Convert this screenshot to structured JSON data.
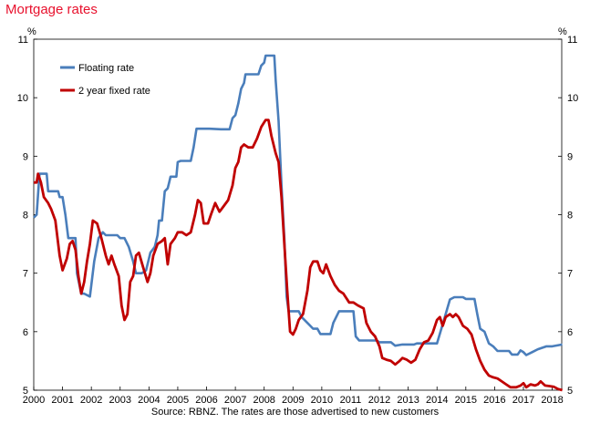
{
  "chart_data": {
    "type": "line",
    "title": "Mortgage rates",
    "source": "Source: RBNZ. The rates are those advertised to new customers",
    "y_unit_left": "%",
    "y_unit_right": "%",
    "ylim": [
      5,
      11
    ],
    "yticks": [
      5,
      6,
      7,
      8,
      9,
      10,
      11
    ],
    "xlim": [
      2000.0,
      2018.33
    ],
    "xticks": [
      "2000",
      "2001",
      "2002",
      "2003",
      "2004",
      "2005",
      "2006",
      "2007",
      "2008",
      "2009",
      "2010",
      "2011",
      "2012",
      "2013",
      "2014",
      "2015",
      "2016",
      "2017",
      "2018"
    ],
    "legend_position": "top-left",
    "grid": false,
    "series": [
      {
        "name": "Floating rate",
        "color": "#4a7ebb",
        "points": [
          [
            2000.0,
            7.95
          ],
          [
            2000.1,
            8.0
          ],
          [
            2000.2,
            8.7
          ],
          [
            2000.45,
            8.7
          ],
          [
            2000.5,
            8.4
          ],
          [
            2000.85,
            8.4
          ],
          [
            2000.9,
            8.3
          ],
          [
            2001.0,
            8.3
          ],
          [
            2001.1,
            8.0
          ],
          [
            2001.2,
            7.6
          ],
          [
            2001.45,
            7.6
          ],
          [
            2001.5,
            7.0
          ],
          [
            2001.65,
            6.65
          ],
          [
            2001.75,
            6.65
          ],
          [
            2001.95,
            6.6
          ],
          [
            2002.1,
            7.2
          ],
          [
            2002.25,
            7.6
          ],
          [
            2002.4,
            7.7
          ],
          [
            2002.5,
            7.65
          ],
          [
            2002.9,
            7.65
          ],
          [
            2003.0,
            7.6
          ],
          [
            2003.15,
            7.6
          ],
          [
            2003.3,
            7.45
          ],
          [
            2003.45,
            7.2
          ],
          [
            2003.55,
            7.0
          ],
          [
            2003.75,
            7.0
          ],
          [
            2003.9,
            7.05
          ],
          [
            2004.05,
            7.35
          ],
          [
            2004.2,
            7.45
          ],
          [
            2004.3,
            7.65
          ],
          [
            2004.35,
            7.9
          ],
          [
            2004.45,
            7.9
          ],
          [
            2004.55,
            8.4
          ],
          [
            2004.65,
            8.45
          ],
          [
            2004.7,
            8.55
          ],
          [
            2004.75,
            8.65
          ],
          [
            2004.95,
            8.65
          ],
          [
            2005.0,
            8.9
          ],
          [
            2005.1,
            8.92
          ],
          [
            2005.45,
            8.92
          ],
          [
            2005.55,
            9.15
          ],
          [
            2005.65,
            9.47
          ],
          [
            2006.0,
            9.47
          ],
          [
            2006.1,
            9.47
          ],
          [
            2006.5,
            9.46
          ],
          [
            2006.8,
            9.46
          ],
          [
            2006.9,
            9.65
          ],
          [
            2007.0,
            9.7
          ],
          [
            2007.1,
            9.9
          ],
          [
            2007.2,
            10.15
          ],
          [
            2007.3,
            10.25
          ],
          [
            2007.35,
            10.4
          ],
          [
            2007.8,
            10.4
          ],
          [
            2007.9,
            10.55
          ],
          [
            2008.0,
            10.6
          ],
          [
            2008.05,
            10.72
          ],
          [
            2008.35,
            10.72
          ],
          [
            2008.4,
            10.3
          ],
          [
            2008.5,
            9.6
          ],
          [
            2008.6,
            8.5
          ],
          [
            2008.7,
            7.6
          ],
          [
            2008.78,
            6.6
          ],
          [
            2008.85,
            6.35
          ],
          [
            2009.2,
            6.35
          ],
          [
            2009.3,
            6.25
          ],
          [
            2009.5,
            6.15
          ],
          [
            2009.7,
            6.05
          ],
          [
            2009.85,
            6.05
          ],
          [
            2009.95,
            5.96
          ],
          [
            2010.3,
            5.96
          ],
          [
            2010.4,
            6.15
          ],
          [
            2010.6,
            6.35
          ],
          [
            2010.95,
            6.35
          ],
          [
            2011.0,
            6.35
          ],
          [
            2011.1,
            6.35
          ],
          [
            2011.18,
            5.92
          ],
          [
            2011.3,
            5.85
          ],
          [
            2011.9,
            5.85
          ],
          [
            2012.0,
            5.82
          ],
          [
            2012.4,
            5.82
          ],
          [
            2012.55,
            5.76
          ],
          [
            2012.8,
            5.78
          ],
          [
            2013.2,
            5.78
          ],
          [
            2013.3,
            5.8
          ],
          [
            2013.8,
            5.8
          ],
          [
            2014.0,
            5.8
          ],
          [
            2014.15,
            6.05
          ],
          [
            2014.3,
            6.3
          ],
          [
            2014.45,
            6.55
          ],
          [
            2014.6,
            6.59
          ],
          [
            2014.9,
            6.59
          ],
          [
            2015.0,
            6.56
          ],
          [
            2015.3,
            6.56
          ],
          [
            2015.4,
            6.3
          ],
          [
            2015.5,
            6.05
          ],
          [
            2015.65,
            6.0
          ],
          [
            2015.8,
            5.8
          ],
          [
            2015.95,
            5.75
          ],
          [
            2016.1,
            5.67
          ],
          [
            2016.5,
            5.67
          ],
          [
            2016.6,
            5.61
          ],
          [
            2016.8,
            5.61
          ],
          [
            2016.9,
            5.68
          ],
          [
            2017.0,
            5.65
          ],
          [
            2017.1,
            5.6
          ],
          [
            2017.3,
            5.65
          ],
          [
            2017.5,
            5.7
          ],
          [
            2017.8,
            5.75
          ],
          [
            2018.0,
            5.75
          ],
          [
            2018.35,
            5.78
          ]
        ]
      },
      {
        "name": "2 year fixed rate",
        "color": "#c00000",
        "points": [
          [
            2000.0,
            8.55
          ],
          [
            2000.1,
            8.55
          ],
          [
            2000.15,
            8.7
          ],
          [
            2000.25,
            8.55
          ],
          [
            2000.35,
            8.3
          ],
          [
            2000.5,
            8.2
          ],
          [
            2000.6,
            8.1
          ],
          [
            2000.75,
            7.9
          ],
          [
            2000.9,
            7.3
          ],
          [
            2001.0,
            7.05
          ],
          [
            2001.15,
            7.25
          ],
          [
            2001.25,
            7.5
          ],
          [
            2001.35,
            7.55
          ],
          [
            2001.45,
            7.4
          ],
          [
            2001.55,
            6.95
          ],
          [
            2001.65,
            6.65
          ],
          [
            2001.75,
            6.85
          ],
          [
            2001.85,
            7.2
          ],
          [
            2001.95,
            7.5
          ],
          [
            2002.05,
            7.9
          ],
          [
            2002.2,
            7.85
          ],
          [
            2002.35,
            7.6
          ],
          [
            2002.5,
            7.3
          ],
          [
            2002.6,
            7.15
          ],
          [
            2002.7,
            7.3
          ],
          [
            2002.8,
            7.15
          ],
          [
            2002.95,
            6.95
          ],
          [
            2003.05,
            6.45
          ],
          [
            2003.15,
            6.2
          ],
          [
            2003.25,
            6.3
          ],
          [
            2003.35,
            6.85
          ],
          [
            2003.45,
            6.95
          ],
          [
            2003.55,
            7.3
          ],
          [
            2003.65,
            7.35
          ],
          [
            2003.8,
            7.1
          ],
          [
            2003.95,
            6.85
          ],
          [
            2004.05,
            7.0
          ],
          [
            2004.15,
            7.3
          ],
          [
            2004.3,
            7.5
          ],
          [
            2004.45,
            7.55
          ],
          [
            2004.55,
            7.6
          ],
          [
            2004.65,
            7.15
          ],
          [
            2004.75,
            7.5
          ],
          [
            2004.9,
            7.6
          ],
          [
            2005.0,
            7.7
          ],
          [
            2005.15,
            7.7
          ],
          [
            2005.3,
            7.65
          ],
          [
            2005.45,
            7.7
          ],
          [
            2005.6,
            8.0
          ],
          [
            2005.7,
            8.25
          ],
          [
            2005.8,
            8.2
          ],
          [
            2005.9,
            7.85
          ],
          [
            2006.05,
            7.85
          ],
          [
            2006.15,
            8.0
          ],
          [
            2006.3,
            8.2
          ],
          [
            2006.45,
            8.05
          ],
          [
            2006.6,
            8.15
          ],
          [
            2006.75,
            8.25
          ],
          [
            2006.9,
            8.5
          ],
          [
            2007.0,
            8.8
          ],
          [
            2007.1,
            8.9
          ],
          [
            2007.2,
            9.15
          ],
          [
            2007.3,
            9.2
          ],
          [
            2007.45,
            9.15
          ],
          [
            2007.6,
            9.15
          ],
          [
            2007.75,
            9.3
          ],
          [
            2007.9,
            9.5
          ],
          [
            2008.05,
            9.62
          ],
          [
            2008.15,
            9.62
          ],
          [
            2008.25,
            9.35
          ],
          [
            2008.4,
            9.05
          ],
          [
            2008.5,
            8.9
          ],
          [
            2008.6,
            8.3
          ],
          [
            2008.7,
            7.5
          ],
          [
            2008.8,
            6.7
          ],
          [
            2008.9,
            6.0
          ],
          [
            2009.0,
            5.95
          ],
          [
            2009.1,
            6.05
          ],
          [
            2009.2,
            6.2
          ],
          [
            2009.35,
            6.3
          ],
          [
            2009.5,
            6.7
          ],
          [
            2009.6,
            7.1
          ],
          [
            2009.7,
            7.2
          ],
          [
            2009.85,
            7.2
          ],
          [
            2009.95,
            7.05
          ],
          [
            2010.05,
            7.0
          ],
          [
            2010.15,
            7.15
          ],
          [
            2010.3,
            6.95
          ],
          [
            2010.45,
            6.8
          ],
          [
            2010.6,
            6.7
          ],
          [
            2010.75,
            6.65
          ],
          [
            2010.95,
            6.5
          ],
          [
            2011.1,
            6.5
          ],
          [
            2011.25,
            6.45
          ],
          [
            2011.45,
            6.4
          ],
          [
            2011.55,
            6.15
          ],
          [
            2011.7,
            6.0
          ],
          [
            2011.85,
            5.92
          ],
          [
            2012.0,
            5.75
          ],
          [
            2012.1,
            5.55
          ],
          [
            2012.25,
            5.52
          ],
          [
            2012.4,
            5.5
          ],
          [
            2012.55,
            5.44
          ],
          [
            2012.7,
            5.5
          ],
          [
            2012.8,
            5.55
          ],
          [
            2012.95,
            5.52
          ],
          [
            2013.1,
            5.47
          ],
          [
            2013.25,
            5.52
          ],
          [
            2013.4,
            5.7
          ],
          [
            2013.55,
            5.82
          ],
          [
            2013.7,
            5.85
          ],
          [
            2013.85,
            5.98
          ],
          [
            2014.0,
            6.2
          ],
          [
            2014.1,
            6.25
          ],
          [
            2014.2,
            6.1
          ],
          [
            2014.3,
            6.25
          ],
          [
            2014.45,
            6.3
          ],
          [
            2014.55,
            6.25
          ],
          [
            2014.65,
            6.3
          ],
          [
            2014.75,
            6.25
          ],
          [
            2014.9,
            6.1
          ],
          [
            2015.05,
            6.05
          ],
          [
            2015.2,
            5.95
          ],
          [
            2015.35,
            5.7
          ],
          [
            2015.5,
            5.5
          ],
          [
            2015.65,
            5.35
          ],
          [
            2015.8,
            5.25
          ],
          [
            2015.95,
            5.22
          ],
          [
            2016.1,
            5.2
          ],
          [
            2016.25,
            5.15
          ],
          [
            2016.4,
            5.1
          ],
          [
            2016.55,
            5.05
          ],
          [
            2016.75,
            5.05
          ],
          [
            2016.9,
            5.08
          ],
          [
            2017.0,
            5.12
          ],
          [
            2017.1,
            5.05
          ],
          [
            2017.25,
            5.1
          ],
          [
            2017.4,
            5.08
          ],
          [
            2017.5,
            5.1
          ],
          [
            2017.6,
            5.15
          ],
          [
            2017.75,
            5.08
          ],
          [
            2017.9,
            5.07
          ],
          [
            2018.05,
            5.06
          ],
          [
            2018.2,
            5.02
          ],
          [
            2018.35,
            5.0
          ]
        ]
      }
    ]
  }
}
